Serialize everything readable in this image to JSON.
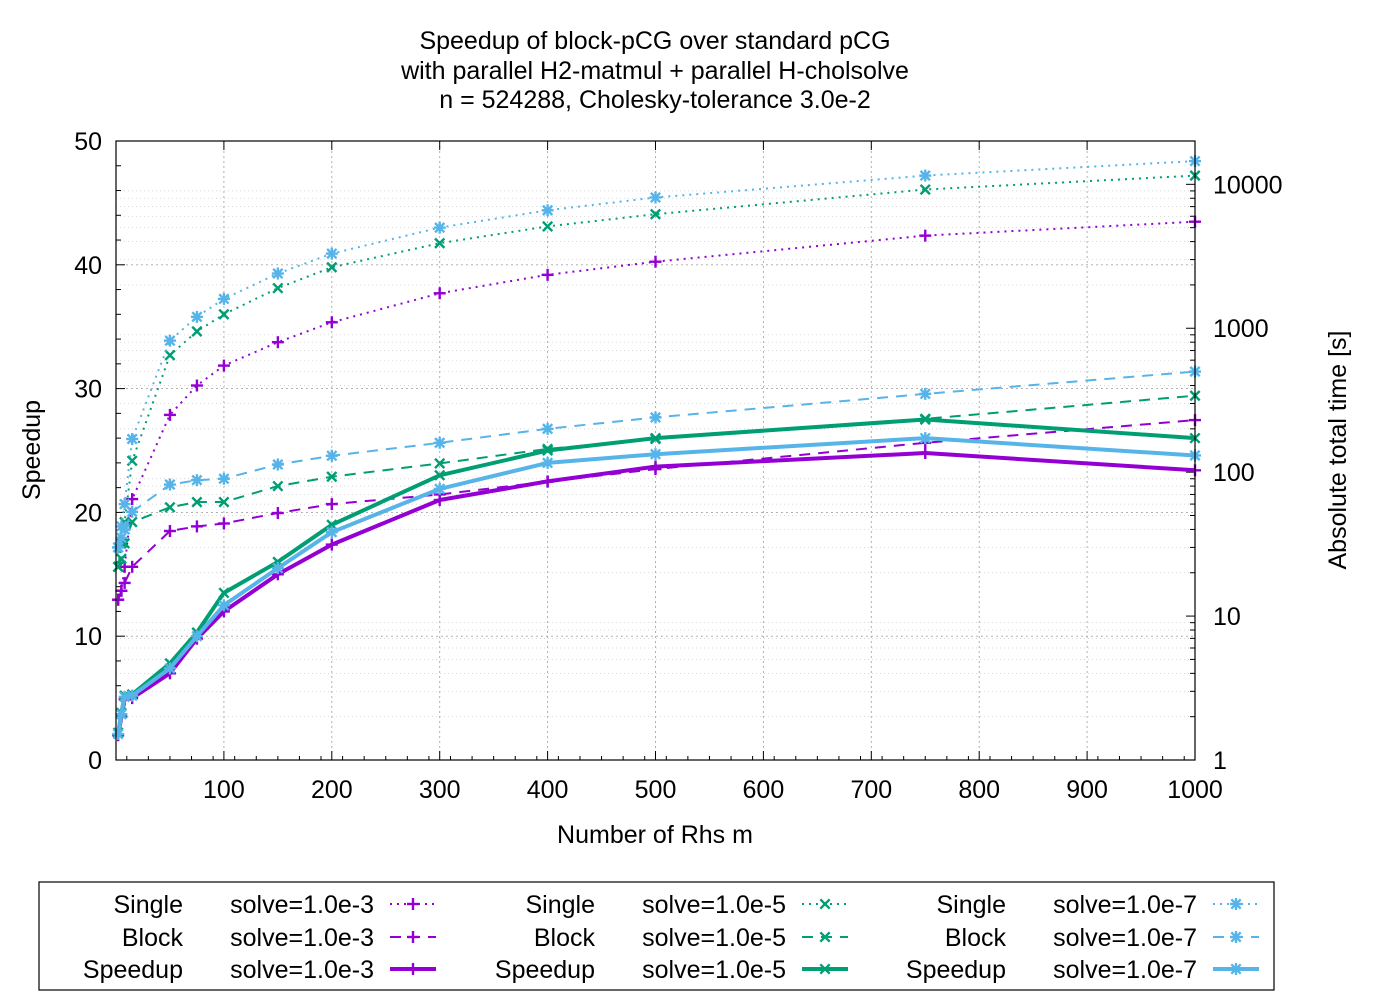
{
  "chart_data": {
    "type": "line",
    "title": [
      "Speedup of block-pCG over standard pCG",
      "with parallel H2-matmul + parallel H-cholsolve",
      "n = 524288, Cholesky-tolerance 3.0e-2"
    ],
    "xlabel": "Number of Rhs m",
    "ylabel": "Speedup",
    "y2label": "Absolute total time [s]",
    "xlim": [
      0,
      1000
    ],
    "ylim": [
      0,
      50
    ],
    "y2lim": [
      1,
      20000
    ],
    "y2scale": "log",
    "x_ticks": [
      100,
      200,
      300,
      400,
      500,
      600,
      700,
      800,
      900,
      1000
    ],
    "y_ticks": [
      0,
      10,
      20,
      30,
      40,
      50
    ],
    "y2_ticks": [
      1,
      10,
      100,
      1000,
      10000
    ],
    "grid": true,
    "legend_position": "bottom, outside",
    "x": [
      2,
      5,
      8,
      15,
      50,
      75,
      100,
      150,
      200,
      300,
      400,
      500,
      750,
      1000
    ],
    "series": [
      {
        "name": "Single",
        "solve": "solve=1.0e-3",
        "axis": "y2",
        "style": "dotted",
        "color": "#9400d3",
        "marker": "plus",
        "values": [
          13,
          15,
          22,
          65,
          250,
          400,
          550,
          800,
          1100,
          1750,
          2350,
          2900,
          4400,
          5500
        ]
      },
      {
        "name": "Block",
        "solve": "solve=1.0e-3",
        "axis": "y2",
        "style": "dashed",
        "color": "#9400d3",
        "marker": "plus",
        "values": [
          13,
          15,
          17,
          22,
          39,
          42,
          44,
          52,
          60,
          70,
          86,
          105,
          160,
          230
        ]
      },
      {
        "name": "Speedup",
        "solve": "solve=1.0e-3",
        "axis": "y",
        "style": "solid",
        "color": "#9400d3",
        "marker": "plus",
        "values": [
          2.0,
          3.5,
          4.9,
          5.0,
          7.0,
          9.8,
          12.0,
          15.0,
          17.4,
          21.0,
          22.5,
          23.7,
          24.8,
          23.4
        ]
      },
      {
        "name": "Single",
        "solve": "solve=1.0e-5",
        "axis": "y2",
        "style": "dotted",
        "color": "#009e73",
        "marker": "x",
        "values": [
          22,
          32,
          45,
          120,
          650,
          950,
          1250,
          1900,
          2650,
          3900,
          5100,
          6200,
          9200,
          11500
        ]
      },
      {
        "name": "Block",
        "solve": "solve=1.0e-5",
        "axis": "y2",
        "style": "dashed",
        "color": "#009e73",
        "marker": "x",
        "values": [
          22,
          25,
          32,
          45,
          57,
          62,
          62,
          80,
          93,
          115,
          145,
          170,
          235,
          340
        ]
      },
      {
        "name": "Speedup",
        "solve": "solve=1.0e-5",
        "axis": "y",
        "style": "solid",
        "color": "#009e73",
        "marker": "x",
        "values": [
          2.2,
          3.8,
          5.2,
          5.3,
          7.8,
          10.3,
          13.5,
          16.0,
          19.0,
          23.0,
          25.0,
          26.0,
          27.5,
          26.0
        ]
      },
      {
        "name": "Single",
        "solve": "solve=1.0e-7",
        "axis": "y2",
        "style": "dotted",
        "color": "#56b4e9",
        "marker": "star",
        "values": [
          30,
          42,
          60,
          170,
          820,
          1200,
          1600,
          2400,
          3300,
          5000,
          6600,
          8100,
          11500,
          14500
        ]
      },
      {
        "name": "Block",
        "solve": "solve=1.0e-7",
        "axis": "y2",
        "style": "dashed",
        "color": "#56b4e9",
        "marker": "star",
        "values": [
          30,
          35,
          40,
          53,
          82,
          88,
          90,
          113,
          130,
          160,
          200,
          240,
          350,
          500
        ]
      },
      {
        "name": "Speedup",
        "solve": "solve=1.0e-7",
        "axis": "y",
        "style": "solid",
        "color": "#56b4e9",
        "marker": "star",
        "values": [
          2.1,
          3.7,
          5.1,
          5.2,
          7.4,
          10.0,
          12.5,
          15.5,
          18.4,
          21.9,
          24.0,
          24.7,
          26.0,
          24.6
        ]
      }
    ]
  }
}
